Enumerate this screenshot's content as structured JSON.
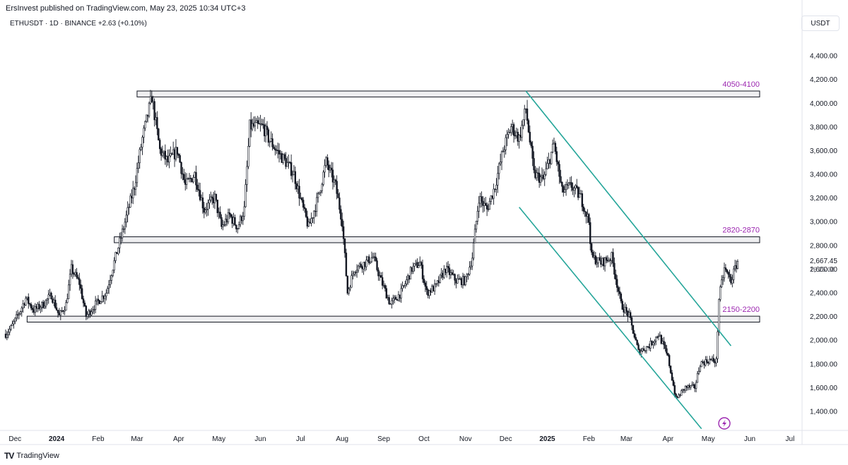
{
  "header": {
    "publisher": "ErsInvest published on TradingView.com, May 23, 2025 10:34 UTC+3",
    "symbol": "ETHUSDT · 1D · BINANCE",
    "change": "+2.63 (+0.10%)",
    "currency": "USDT"
  },
  "footer": {
    "brand": "TradingView",
    "logo": "TV"
  },
  "chart_data": {
    "type": "candlestick",
    "ylim": [
      1260,
      4600
    ],
    "y_ticks": [
      1400,
      1600,
      1800,
      2000,
      2200,
      2400,
      2600,
      2800,
      3000,
      3200,
      3400,
      3600,
      3800,
      4000,
      4200,
      4400
    ],
    "y_tick_labels": [
      "1,400.00",
      "1,600.00",
      "1,800.00",
      "2,000.00",
      "2,200.00",
      "2,400.00",
      "2,600.00",
      "2,800.00",
      "3,000.00",
      "3,200.00",
      "3,400.00",
      "3,600.00",
      "3,800.00",
      "4,000.00",
      "4,200.00",
      "4,400.00"
    ],
    "x_range": [
      "2023-11-24",
      "2025-07-10"
    ],
    "x_ticks": [
      {
        "date": "2023-12-01",
        "label": "Dec",
        "bold": false
      },
      {
        "date": "2024-01-01",
        "label": "2024",
        "bold": true
      },
      {
        "date": "2024-02-01",
        "label": "Feb",
        "bold": false
      },
      {
        "date": "2024-03-01",
        "label": "Mar",
        "bold": false
      },
      {
        "date": "2024-04-01",
        "label": "Apr",
        "bold": false
      },
      {
        "date": "2024-05-01",
        "label": "May",
        "bold": false
      },
      {
        "date": "2024-06-01",
        "label": "Jun",
        "bold": false
      },
      {
        "date": "2024-07-01",
        "label": "Jul",
        "bold": false
      },
      {
        "date": "2024-08-01",
        "label": "Aug",
        "bold": false
      },
      {
        "date": "2024-09-01",
        "label": "Sep",
        "bold": false
      },
      {
        "date": "2024-10-01",
        "label": "Oct",
        "bold": false
      },
      {
        "date": "2024-11-01",
        "label": "Nov",
        "bold": false
      },
      {
        "date": "2024-12-01",
        "label": "Dec",
        "bold": false
      },
      {
        "date": "2025-01-01",
        "label": "2025",
        "bold": true
      },
      {
        "date": "2025-02-01",
        "label": "Feb",
        "bold": false
      },
      {
        "date": "2025-03-01",
        "label": "Mar",
        "bold": false
      },
      {
        "date": "2025-04-01",
        "label": "Apr",
        "bold": false
      },
      {
        "date": "2025-05-01",
        "label": "May",
        "bold": false
      },
      {
        "date": "2025-06-01",
        "label": "Jun",
        "bold": false
      },
      {
        "date": "2025-07-01",
        "label": "Jul",
        "bold": false
      }
    ],
    "price_path": [
      [
        "2023-11-24",
        2050
      ],
      [
        "2023-11-28",
        2100
      ],
      [
        "2023-12-05",
        2250
      ],
      [
        "2023-12-09",
        2350
      ],
      [
        "2023-12-15",
        2250
      ],
      [
        "2023-12-22",
        2300
      ],
      [
        "2023-12-28",
        2380
      ],
      [
        "2024-01-03",
        2200
      ],
      [
        "2024-01-08",
        2300
      ],
      [
        "2024-01-12",
        2600
      ],
      [
        "2024-01-18",
        2480
      ],
      [
        "2024-01-23",
        2200
      ],
      [
        "2024-01-30",
        2300
      ],
      [
        "2024-02-07",
        2400
      ],
      [
        "2024-02-14",
        2700
      ],
      [
        "2024-02-20",
        2950
      ],
      [
        "2024-02-28",
        3300
      ],
      [
        "2024-03-05",
        3700
      ],
      [
        "2024-03-12",
        4050
      ],
      [
        "2024-03-18",
        3600
      ],
      [
        "2024-03-24",
        3500
      ],
      [
        "2024-03-31",
        3600
      ],
      [
        "2024-04-06",
        3300
      ],
      [
        "2024-04-13",
        3400
      ],
      [
        "2024-04-20",
        3100
      ],
      [
        "2024-04-28",
        3200
      ],
      [
        "2024-05-03",
        2950
      ],
      [
        "2024-05-09",
        3050
      ],
      [
        "2024-05-15",
        2950
      ],
      [
        "2024-05-20",
        3100
      ],
      [
        "2024-05-24",
        3800
      ],
      [
        "2024-06-03",
        3800
      ],
      [
        "2024-06-07",
        3700
      ],
      [
        "2024-06-13",
        3600
      ],
      [
        "2024-06-20",
        3500
      ],
      [
        "2024-06-26",
        3400
      ],
      [
        "2024-07-03",
        3100
      ],
      [
        "2024-07-07",
        2950
      ],
      [
        "2024-07-14",
        3200
      ],
      [
        "2024-07-20",
        3500
      ],
      [
        "2024-07-27",
        3300
      ],
      [
        "2024-08-01",
        3000
      ],
      [
        "2024-08-05",
        2400
      ],
      [
        "2024-08-10",
        2600
      ],
      [
        "2024-08-18",
        2650
      ],
      [
        "2024-08-24",
        2700
      ],
      [
        "2024-08-30",
        2500
      ],
      [
        "2024-09-06",
        2300
      ],
      [
        "2024-09-14",
        2400
      ],
      [
        "2024-09-22",
        2600
      ],
      [
        "2024-09-28",
        2650
      ],
      [
        "2024-10-03",
        2400
      ],
      [
        "2024-10-10",
        2450
      ],
      [
        "2024-10-17",
        2600
      ],
      [
        "2024-10-25",
        2500
      ],
      [
        "2024-11-01",
        2500
      ],
      [
        "2024-11-06",
        2700
      ],
      [
        "2024-11-11",
        3200
      ],
      [
        "2024-11-17",
        3100
      ],
      [
        "2024-11-23",
        3300
      ],
      [
        "2024-11-29",
        3600
      ],
      [
        "2024-12-05",
        3800
      ],
      [
        "2024-12-11",
        3700
      ],
      [
        "2024-12-16",
        3950
      ],
      [
        "2024-12-22",
        3400
      ],
      [
        "2024-12-29",
        3350
      ],
      [
        "2025-01-06",
        3650
      ],
      [
        "2025-01-12",
        3250
      ],
      [
        "2025-01-19",
        3300
      ],
      [
        "2025-01-26",
        3200
      ],
      [
        "2025-02-01",
        3000
      ],
      [
        "2025-02-03",
        2700
      ],
      [
        "2025-02-10",
        2650
      ],
      [
        "2025-02-18",
        2700
      ],
      [
        "2025-02-25",
        2300
      ],
      [
        "2025-03-03",
        2200
      ],
      [
        "2025-03-10",
        1900
      ],
      [
        "2025-03-18",
        1950
      ],
      [
        "2025-03-25",
        2050
      ],
      [
        "2025-04-01",
        1850
      ],
      [
        "2025-04-07",
        1500
      ],
      [
        "2025-04-14",
        1600
      ],
      [
        "2025-04-21",
        1600
      ],
      [
        "2025-04-25",
        1800
      ],
      [
        "2025-05-02",
        1830
      ],
      [
        "2025-05-07",
        1820
      ],
      [
        "2025-05-09",
        2350
      ],
      [
        "2025-05-13",
        2600
      ],
      [
        "2025-05-18",
        2500
      ],
      [
        "2025-05-23",
        2667.45
      ]
    ],
    "last_price": "2,667.45",
    "countdown": "16:25:08",
    "zones": [
      {
        "label": "4050-4100",
        "low": 4050,
        "high": 4100,
        "start": "2024-03-01"
      },
      {
        "label": "2820-2870",
        "low": 2820,
        "high": 2870,
        "start": "2024-02-13"
      },
      {
        "label": "2150-2200",
        "low": 2150,
        "high": 2200,
        "start": "2023-12-10"
      }
    ],
    "trendlines": [
      {
        "from": [
          "2024-12-16",
          4100
        ],
        "to": [
          "2025-05-18",
          1950
        ]
      },
      {
        "from": [
          "2024-12-11",
          3120
        ],
        "to": [
          "2025-04-26",
          1250
        ]
      }
    ],
    "colors": {
      "candle": "#131722",
      "zone_fill": "#eeeef0",
      "zone_border": "#131722",
      "trendline": "#26a69a",
      "zone_label": "#9c27b0"
    }
  }
}
